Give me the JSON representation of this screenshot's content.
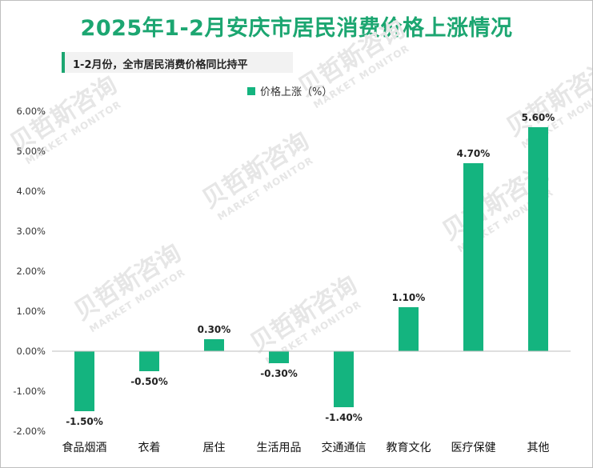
{
  "title": "2025年1-2月安庆市居民消费价格上涨情况",
  "subtitle": "1-2月份，全市居民消费价格同比持平",
  "colors": {
    "accent": "#1ca671",
    "bar": "#14b47f",
    "watermark": "#e6e6e6"
  },
  "watermark": {
    "cn": "贝哲斯咨询",
    "en": "MARKET MONITOR"
  },
  "chart_data": {
    "type": "bar",
    "categories": [
      "食品烟酒",
      "衣着",
      "居住",
      "生活用品",
      "交通通信",
      "教育文化",
      "医疗保健",
      "其他"
    ],
    "series": [
      {
        "name": "价格上涨（%）",
        "values": [
          -1.5,
          -0.5,
          0.3,
          -0.3,
          -1.4,
          1.1,
          4.7,
          5.6
        ]
      }
    ],
    "data_labels": [
      "-1.50%",
      "-0.50%",
      "0.30%",
      "-0.30%",
      "-1.40%",
      "1.10%",
      "4.70%",
      "5.60%"
    ],
    "ylim": [
      -2,
      6
    ],
    "yticks": [
      6,
      5,
      4,
      3,
      2,
      1,
      0,
      -1,
      -2
    ],
    "ytick_labels": [
      "6.00%",
      "5.00%",
      "4.00%",
      "3.00%",
      "2.00%",
      "1.00%",
      "0.00%",
      "-1.00%",
      "-2.00%"
    ],
    "legend_position": "top-center",
    "grid": false
  }
}
